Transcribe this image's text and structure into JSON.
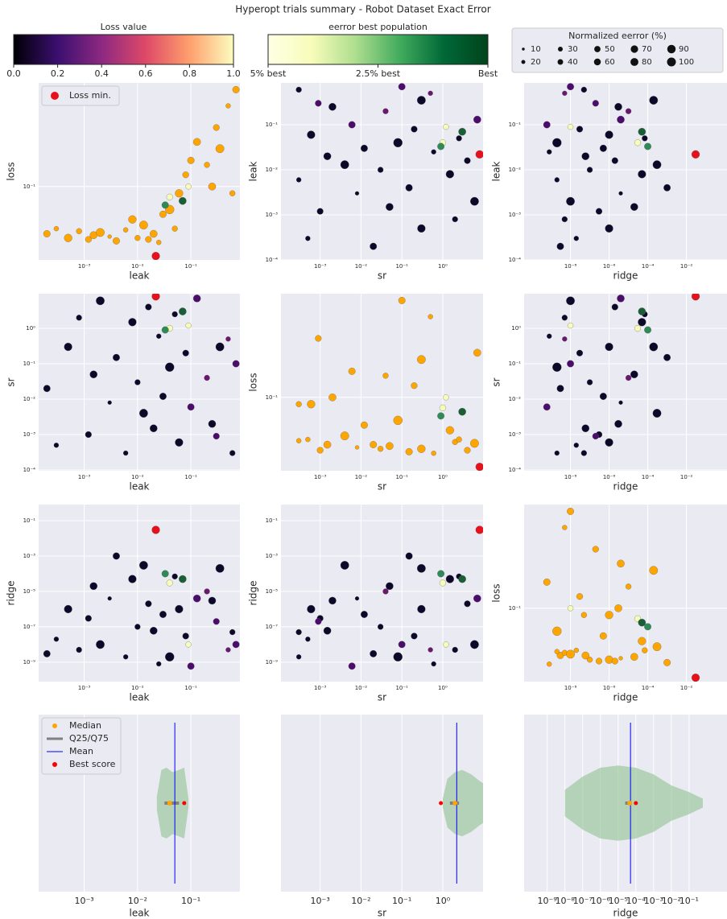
{
  "chart_data": {
    "title": "Hyperopt trials summary - Robot Dataset Exact Error",
    "colorbars": [
      {
        "title": "Loss value",
        "lim": [
          0,
          1
        ],
        "colors": [
          "#000004",
          "#3b0f70",
          "#8c2981",
          "#de4968",
          "#fe9f6d",
          "#fcfdbf"
        ],
        "ticks": [
          {
            "value": 0,
            "label": "0.0"
          },
          0.2,
          0.4,
          0.6,
          0.8,
          {
            "value": 1,
            "label": "1.0"
          }
        ]
      },
      {
        "title": "eerror best population",
        "lim": [
          5,
          0
        ],
        "colors": [
          "#ffffe5",
          "#f7fcb9",
          "#addd8e",
          "#41ab5d",
          "#006837",
          "#00441b"
        ],
        "ticks": [
          {
            "value": 5,
            "label": "5% best"
          },
          {
            "value": 2.5,
            "label": "2.5% best"
          },
          {
            "value": 0,
            "label": "Best"
          }
        ]
      }
    ],
    "size_legend": {
      "title": "Normalized eerror (%)",
      "values": [
        10,
        20,
        30,
        40,
        50,
        60,
        70,
        80,
        90,
        100
      ],
      "color": "#111111"
    },
    "min_label": "Loss min.",
    "min_color": "#e8101a",
    "trials": {
      "leak": [
        0.0002,
        0.0003,
        0.0005,
        0.0008,
        0.0012,
        0.0015,
        0.002,
        0.003,
        0.004,
        0.006,
        0.008,
        0.01,
        0.013,
        0.016,
        0.02,
        0.025,
        0.03,
        0.04,
        0.05,
        0.06,
        0.08,
        0.1,
        0.13,
        0.2,
        0.3,
        0.5,
        0.7,
        0.25,
        0.6,
        0.35,
        0.04,
        0.033,
        0.07,
        0.09,
        0.022
      ],
      "sr": [
        0.02,
        0.0005,
        0.3,
        2.0,
        0.001,
        0.05,
        6.0,
        0.008,
        0.15,
        0.0003,
        1.5,
        0.03,
        0.004,
        4.0,
        0.0015,
        0.6,
        0.012,
        0.08,
        2.5,
        0.0006,
        0.2,
        0.006,
        7.0,
        0.04,
        0.0009,
        0.5,
        0.1,
        0.002,
        0.0003,
        0.3,
        1.0,
        0.9,
        3.0,
        1.2,
        8.0
      ],
      "ridge": [
        3e-09,
        2e-08,
        1e-06,
        5e-09,
        3e-07,
        2e-05,
        1e-08,
        4e-06,
        0.001,
        2e-09,
        5e-05,
        1e-07,
        0.0003,
        2e-06,
        6e-08,
        8e-10,
        5e-07,
        2e-09,
        7e-05,
        1e-06,
        3e-08,
        6e-10,
        4e-06,
        1e-05,
        2e-07,
        5e-09,
        1e-08,
        3e-06,
        5e-08,
        0.0002,
        3e-05,
        0.0001,
        5e-05,
        1e-08,
        0.03
      ],
      "loss": [
        0.048,
        0.052,
        0.045,
        0.05,
        0.044,
        0.047,
        0.049,
        0.046,
        0.043,
        0.051,
        0.06,
        0.045,
        0.055,
        0.044,
        0.048,
        0.042,
        0.065,
        0.07,
        0.052,
        0.09,
        0.12,
        0.15,
        0.2,
        0.14,
        0.25,
        0.35,
        0.45,
        0.1,
        0.09,
        0.18,
        0.085,
        0.075,
        0.08,
        0.1,
        0.034
      ],
      "eerror": [
        60,
        30,
        80,
        40,
        50,
        70,
        90,
        20,
        60,
        30,
        80,
        40,
        90,
        50,
        70,
        30,
        60,
        100,
        40,
        80,
        50,
        60,
        70,
        40,
        50,
        30,
        60,
        70,
        40,
        90,
        50,
        60,
        70,
        40,
        80
      ],
      "color": [
        "#0d0829",
        "#0d0829",
        "#0d0829",
        "#0d0829",
        "#0d0829",
        "#0d0829",
        "#0d0829",
        "#0d0829",
        "#0d0829",
        "#0d0829",
        "#0d0829",
        "#0d0829",
        "#0d0829",
        "#0d0829",
        "#0d0829",
        "#0d0829",
        "#0d0829",
        "#0d0829",
        "#0d0829",
        "#0d0829",
        "#0d0829",
        "#4b0c6b",
        "#4b0c6b",
        "#6a176e",
        "#4b0c6b",
        "#6a176e",
        "#4b0c6b",
        "#0d0829",
        "#0d0829",
        "#0d0829",
        "#f7fcb9",
        "#2e8b57",
        "#1a5e36",
        "#f7fcb9",
        "#e8101a"
      ],
      "loss_color": [
        "#ffa500",
        "#ffa500",
        "#ffa500",
        "#ffa500",
        "#ffa500",
        "#ffa500",
        "#ffa500",
        "#ffa500",
        "#ffa500",
        "#ffa500",
        "#ffa500",
        "#ffa500",
        "#ffa500",
        "#ffa500",
        "#ffa500",
        "#ffa500",
        "#ffa500",
        "#ffa500",
        "#ffa500",
        "#ffa500",
        "#ffa500",
        "#ffa500",
        "#ffa500",
        "#ffa500",
        "#ffa500",
        "#ffa500",
        "#ffa500",
        "#ffa500",
        "#ffa500",
        "#ffa500",
        "#f7fcb9",
        "#2e8b57",
        "#1a5e36",
        "#f7fcb9",
        "#e8101a"
      ]
    },
    "panels": [
      {
        "type": "scatter",
        "xlabel": "leak",
        "ylabel": "loss",
        "xscale": "log",
        "yscale": "log",
        "xlim": [
          0.00014,
          0.83
        ],
        "ylim": [
          0.032,
          0.5
        ],
        "xticks": [
          {
            "value": 0.001,
            "label": "10⁻³"
          },
          {
            "value": 0.01,
            "label": "10⁻²"
          },
          {
            "value": 0.1,
            "label": "10⁻¹"
          }
        ],
        "yticks": [
          {
            "value": 0.1,
            "label": "10⁻¹"
          }
        ]
      },
      {
        "type": "scatter",
        "xlabel": "sr",
        "ylabel": "leak",
        "xscale": "log",
        "yscale": "log",
        "xlim": [
          0.00011,
          9.7
        ],
        "ylim": [
          0.0001,
          0.85
        ],
        "xticks": [
          {
            "value": 0.001,
            "label": "10⁻³"
          },
          {
            "value": 0.01,
            "label": "10⁻²"
          },
          {
            "value": 0.1,
            "label": "10⁻¹"
          },
          {
            "value": 1,
            "label": "10⁰"
          }
        ],
        "yticks": [
          {
            "value": 0.0001,
            "label": "10⁻⁴"
          },
          {
            "value": 0.001,
            "label": "10⁻³"
          },
          {
            "value": 0.01,
            "label": "10⁻²"
          },
          {
            "value": 0.1,
            "label": "10⁻¹"
          }
        ]
      },
      {
        "type": "scatter",
        "xlabel": "ridge",
        "ylabel": "leak",
        "xscale": "log",
        "yscale": "log",
        "xlim": [
          4e-11,
          1.26
        ],
        "ylim": [
          0.0001,
          0.85
        ],
        "xticks": [
          {
            "value": 1e-08,
            "label": "10⁻⁸"
          },
          {
            "value": 1e-06,
            "label": "10⁻⁶"
          },
          {
            "value": 0.0001,
            "label": "10⁻⁴"
          },
          {
            "value": 0.01,
            "label": "10⁻²"
          }
        ],
        "yticks": [
          {
            "value": 0.0001,
            "label": "10⁻⁴"
          },
          {
            "value": 0.001,
            "label": "10⁻³"
          },
          {
            "value": 0.01,
            "label": "10⁻²"
          },
          {
            "value": 0.1,
            "label": "10⁻¹"
          }
        ]
      },
      {
        "type": "scatter",
        "xlabel": "leak",
        "ylabel": "sr",
        "xscale": "log",
        "yscale": "log",
        "xlim": [
          0.00014,
          0.83
        ],
        "ylim": [
          9.5e-05,
          9.5
        ],
        "xticks": [
          {
            "value": 0.001,
            "label": "10⁻³"
          },
          {
            "value": 0.01,
            "label": "10⁻²"
          },
          {
            "value": 0.1,
            "label": "10⁻¹"
          }
        ],
        "yticks": [
          {
            "value": 0.0001,
            "label": "10⁻⁴"
          },
          {
            "value": 0.001,
            "label": "10⁻³"
          },
          {
            "value": 0.01,
            "label": "10⁻²"
          },
          {
            "value": 0.1,
            "label": "10⁻¹"
          },
          {
            "value": 1,
            "label": "10⁰"
          }
        ]
      },
      {
        "type": "scatter",
        "xlabel": "sr",
        "ylabel": "loss",
        "xscale": "log",
        "yscale": "log",
        "xlim": [
          0.00011,
          9.7
        ],
        "ylim": [
          0.032,
          0.5
        ],
        "xticks": [
          {
            "value": 0.001,
            "label": "10⁻³"
          },
          {
            "value": 0.01,
            "label": "10⁻²"
          },
          {
            "value": 0.1,
            "label": "10⁻¹"
          },
          {
            "value": 1,
            "label": "10⁰"
          }
        ],
        "yticks": [
          {
            "value": 0.1,
            "label": "10⁻¹"
          }
        ]
      },
      {
        "type": "scatter",
        "xlabel": "ridge",
        "ylabel": "sr",
        "xscale": "log",
        "yscale": "log",
        "xlim": [
          4e-11,
          1.26
        ],
        "ylim": [
          9.5e-05,
          9.5
        ],
        "xticks": [
          {
            "value": 1e-08,
            "label": "10⁻⁸"
          },
          {
            "value": 1e-06,
            "label": "10⁻⁶"
          },
          {
            "value": 0.0001,
            "label": "10⁻⁴"
          },
          {
            "value": 0.01,
            "label": "10⁻²"
          }
        ],
        "yticks": [
          {
            "value": 0.0001,
            "label": "10⁻⁴"
          },
          {
            "value": 0.001,
            "label": "10⁻³"
          },
          {
            "value": 0.01,
            "label": "10⁻²"
          },
          {
            "value": 0.1,
            "label": "10⁻¹"
          },
          {
            "value": 1,
            "label": "10⁰"
          }
        ]
      },
      {
        "type": "scatter",
        "xlabel": "leak",
        "ylabel": "ridge",
        "xscale": "log",
        "yscale": "log",
        "xlim": [
          0.00014,
          0.83
        ],
        "ylim": [
          8e-11,
          0.81
        ],
        "xticks": [
          {
            "value": 0.001,
            "label": "10⁻³"
          },
          {
            "value": 0.01,
            "label": "10⁻²"
          },
          {
            "value": 0.1,
            "label": "10⁻¹"
          }
        ],
        "yticks": [
          {
            "value": 1e-09,
            "label": "10⁻⁹"
          },
          {
            "value": 1e-07,
            "label": "10⁻⁷"
          },
          {
            "value": 1e-05,
            "label": "10⁻⁵"
          },
          {
            "value": 0.001,
            "label": "10⁻³"
          },
          {
            "value": 0.1,
            "label": "10⁻¹"
          }
        ]
      },
      {
        "type": "scatter",
        "xlabel": "sr",
        "ylabel": "ridge",
        "xscale": "log",
        "yscale": "log",
        "xlim": [
          0.00011,
          9.7
        ],
        "ylim": [
          8e-11,
          0.81
        ],
        "xticks": [
          {
            "value": 0.001,
            "label": "10⁻³"
          },
          {
            "value": 0.01,
            "label": "10⁻²"
          },
          {
            "value": 0.1,
            "label": "10⁻¹"
          },
          {
            "value": 1,
            "label": "10⁰"
          }
        ],
        "yticks": [
          {
            "value": 1e-09,
            "label": "10⁻⁹"
          },
          {
            "value": 1e-07,
            "label": "10⁻⁷"
          },
          {
            "value": 1e-05,
            "label": "10⁻⁵"
          },
          {
            "value": 0.001,
            "label": "10⁻³"
          },
          {
            "value": 0.1,
            "label": "10⁻¹"
          }
        ]
      },
      {
        "type": "scatter",
        "xlabel": "ridge",
        "ylabel": "loss",
        "xscale": "log",
        "yscale": "log",
        "xlim": [
          4e-11,
          1.26
        ],
        "ylim": [
          0.032,
          0.5
        ],
        "xticks": [
          {
            "value": 1e-08,
            "label": "10⁻⁸"
          },
          {
            "value": 1e-06,
            "label": "10⁻⁶"
          },
          {
            "value": 0.0001,
            "label": "10⁻⁴"
          },
          {
            "value": 0.01,
            "label": "10⁻²"
          }
        ],
        "yticks": [
          {
            "value": 0.1,
            "label": "10⁻¹"
          }
        ]
      },
      {
        "type": "violin",
        "xlabel": "leak",
        "xscale": "log",
        "xlim": [
          0.00014,
          0.83
        ],
        "xticks": [
          {
            "value": 0.001,
            "label": "10⁻³"
          },
          {
            "value": 0.01,
            "label": "10⁻²"
          },
          {
            "value": 0.1,
            "label": "10⁻¹"
          }
        ],
        "violin_x": [
          0.023,
          0.028,
          0.035,
          0.045,
          0.06,
          0.075,
          0.09
        ],
        "density": [
          0.15,
          0.75,
          0.8,
          0.7,
          0.75,
          0.8,
          0.1
        ],
        "median": 0.04,
        "q25": 0.032,
        "q75": 0.06,
        "mean": 0.05,
        "best": 0.075,
        "legend": [
          {
            "name": "Median",
            "color": "#ffa500"
          },
          {
            "name": "Q25/Q75",
            "color": "#808080"
          },
          {
            "name": "Mean",
            "color": "#0000ff"
          },
          {
            "name": "Best score",
            "color": "#ff0000"
          }
        ]
      },
      {
        "type": "violin",
        "xlabel": "sr",
        "xscale": "log",
        "xlim": [
          0.00011,
          9.7
        ],
        "xticks": [
          {
            "value": 0.001,
            "label": "10⁻³"
          },
          {
            "value": 0.01,
            "label": "10⁻²"
          },
          {
            "value": 0.1,
            "label": "10⁻¹"
          },
          {
            "value": 1,
            "label": "10⁰"
          }
        ],
        "violin_x": [
          1.0,
          1.3,
          2,
          3,
          5,
          8,
          9.7
        ],
        "density": [
          0.1,
          0.55,
          0.7,
          0.75,
          0.65,
          0.5,
          0.45
        ],
        "median": 2.0,
        "q25": 1.5,
        "q75": 2.5,
        "mean": 2.2,
        "best": 0.9
      },
      {
        "type": "violin",
        "xlabel": "ridge",
        "xscale": "log",
        "xlim": [
          5e-11,
          13.8
        ],
        "xticks": [
          {
            "value": 1e-09,
            "label": "10⁻⁹"
          },
          {
            "value": 1e-08,
            "label": "10⁻⁸"
          },
          {
            "value": 1e-07,
            "label": "10⁻⁷"
          },
          {
            "value": 1e-06,
            "label": "10⁻⁶"
          },
          {
            "value": 1e-05,
            "label": "10⁻⁵"
          },
          {
            "value": 0.0001,
            "label": "10⁻⁴"
          },
          {
            "value": 0.001,
            "label": "10⁻³"
          },
          {
            "value": 0.01,
            "label": "10⁻²"
          },
          {
            "value": 0.1,
            "label": "10⁻¹"
          }
        ],
        "violin_x": [
          1e-08,
          1e-07,
          1e-06,
          1e-05,
          0.0001,
          0.001,
          0.01,
          0.1,
          0.6
        ],
        "density": [
          0.3,
          0.6,
          0.8,
          0.85,
          0.8,
          0.65,
          0.4,
          0.25,
          0.1
        ],
        "median": 4.5e-05,
        "q25": 2.5e-05,
        "q75": 6e-05,
        "mean": 5e-05,
        "best": 0.0001
      }
    ]
  }
}
